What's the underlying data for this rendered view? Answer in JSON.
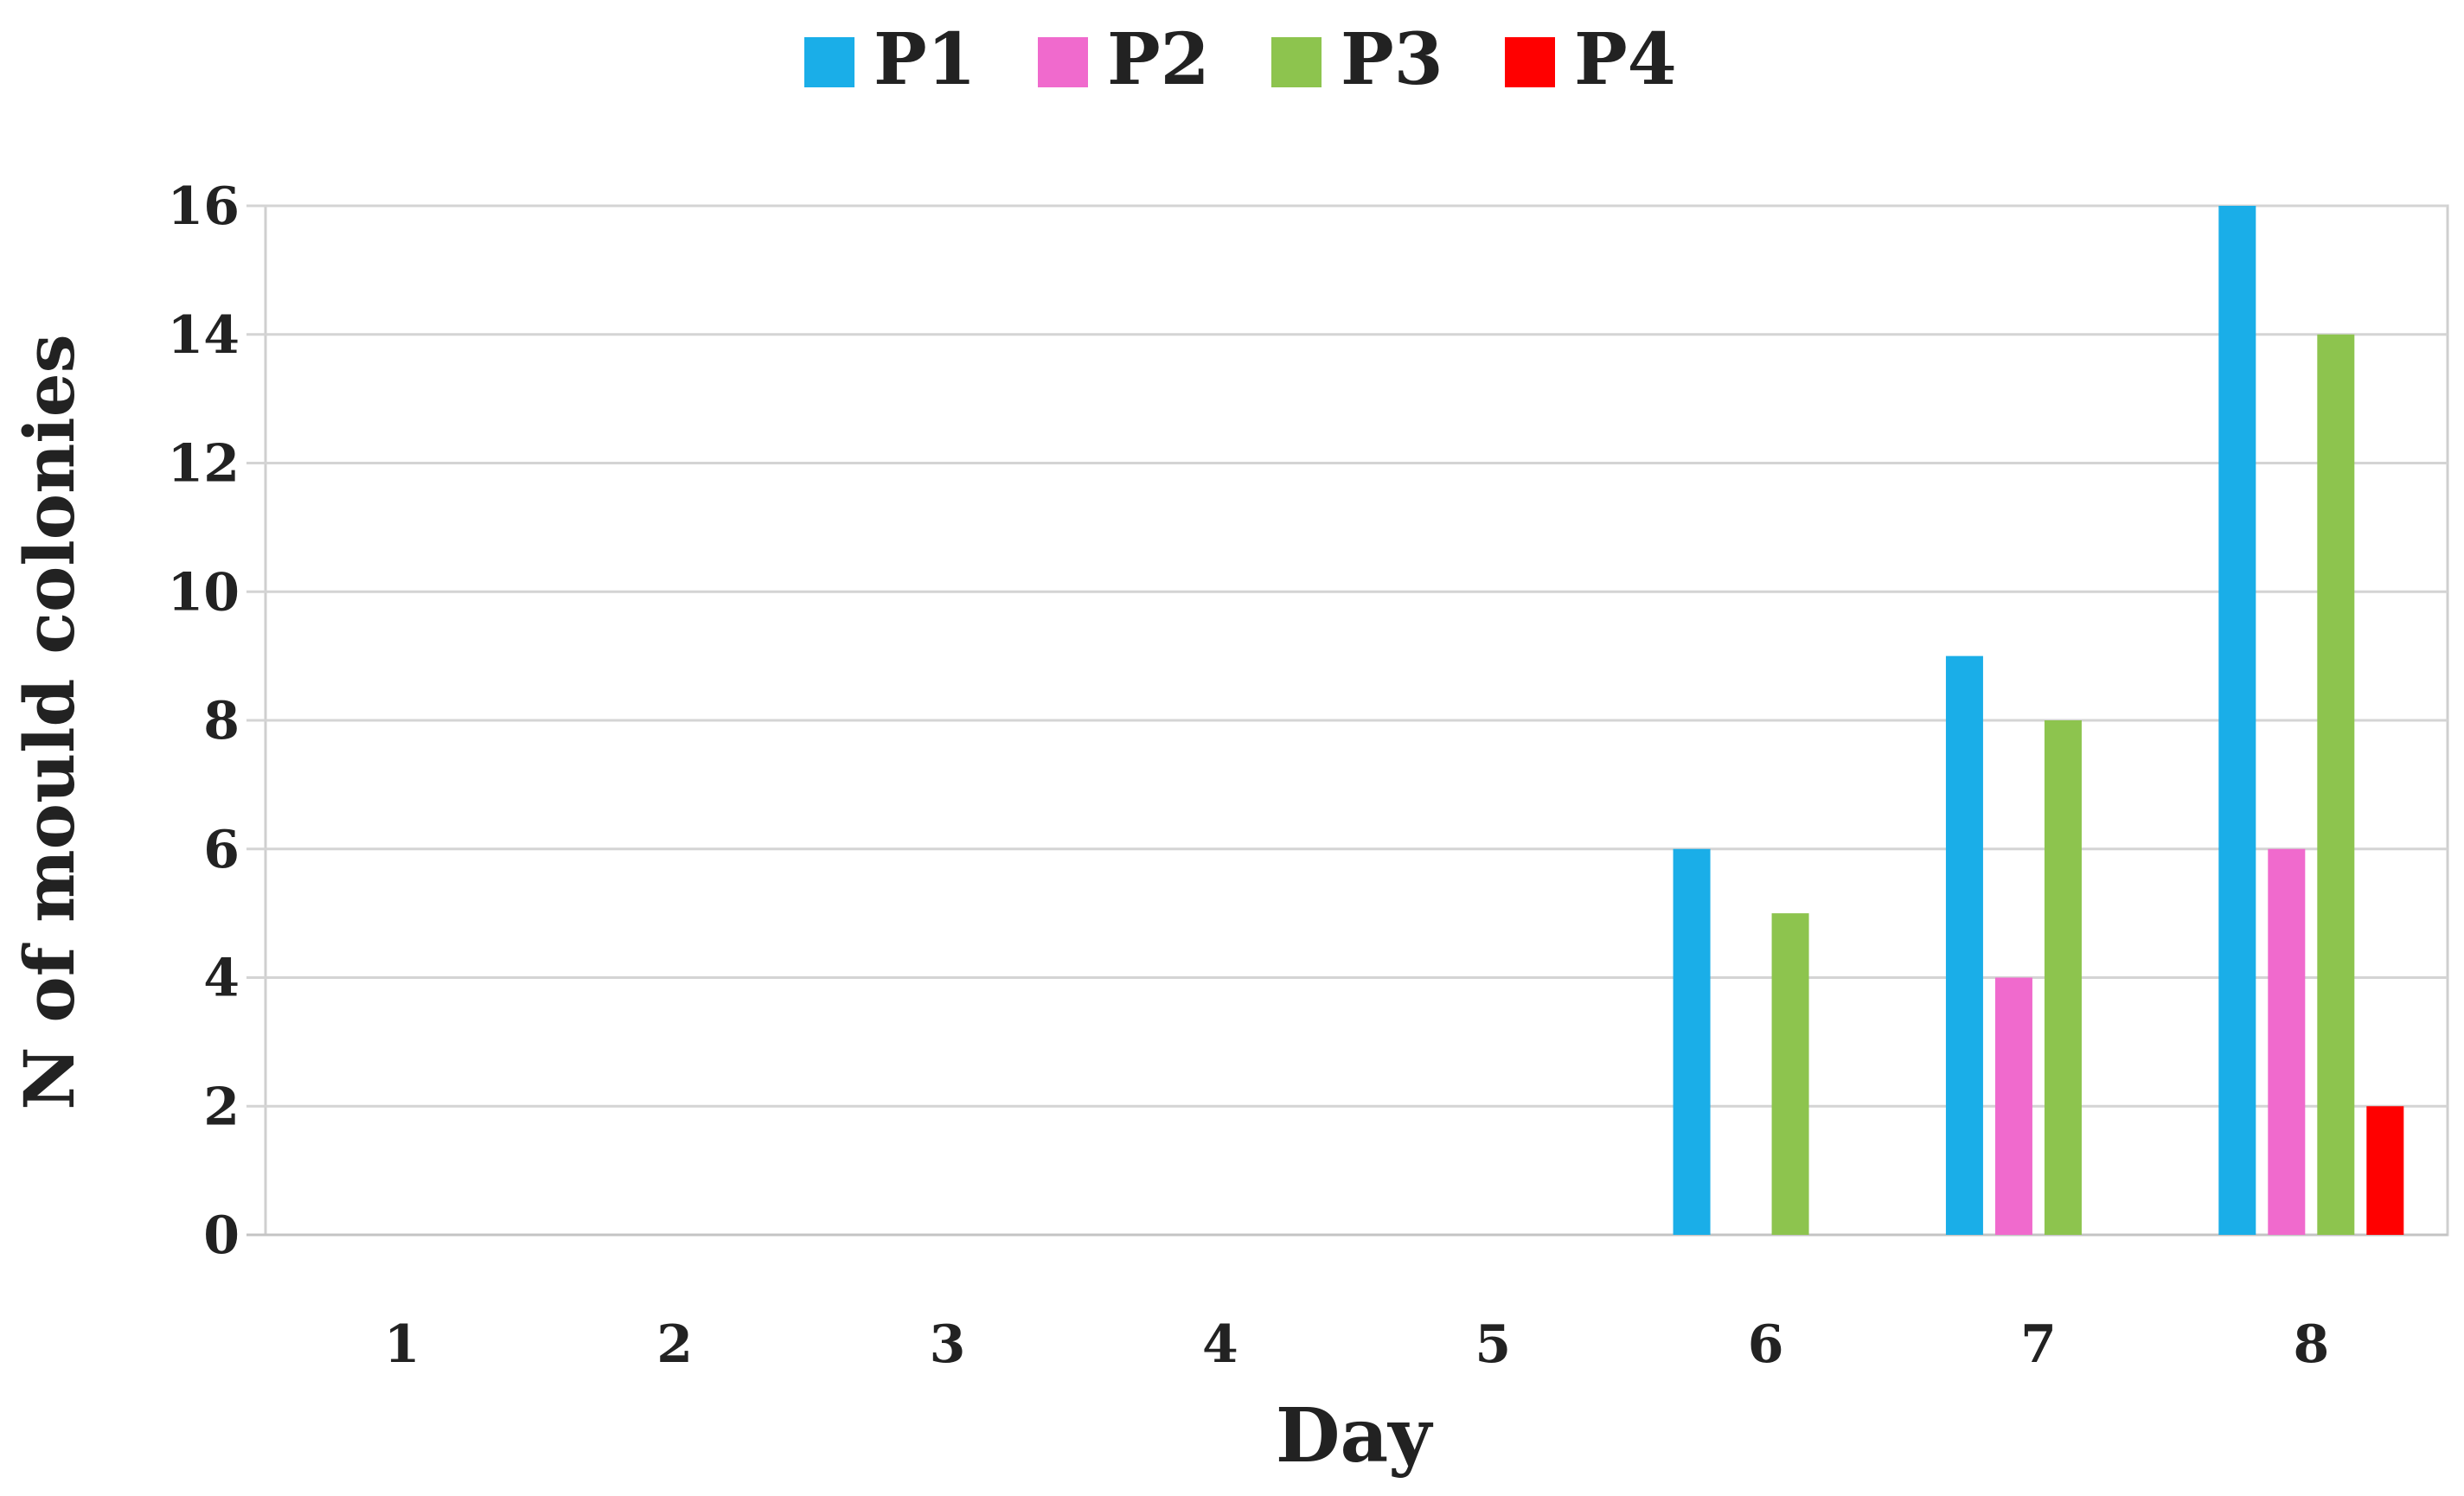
{
  "chart_data": {
    "type": "bar",
    "title": "",
    "xlabel": "Day",
    "ylabel": "N of mould colonies",
    "categories": [
      "1",
      "2",
      "3",
      "4",
      "5",
      "6",
      "7",
      "8"
    ],
    "ylim": [
      0,
      16
    ],
    "yticks": [
      0,
      2,
      4,
      6,
      8,
      10,
      12,
      14,
      16
    ],
    "grid": true,
    "legend_position": "top-center",
    "series": [
      {
        "name": "P1",
        "color": "#1aaee8",
        "values": [
          0,
          0,
          0,
          0,
          0,
          6,
          9,
          16
        ]
      },
      {
        "name": "P2",
        "color": "#f06acd",
        "values": [
          0,
          0,
          0,
          0,
          0,
          0,
          4,
          6
        ]
      },
      {
        "name": "P3",
        "color": "#8dc44e",
        "values": [
          0,
          0,
          0,
          0,
          0,
          5,
          8,
          14
        ]
      },
      {
        "name": "P4",
        "color": "#ff0000",
        "values": [
          0,
          0,
          0,
          0,
          0,
          0,
          0,
          2
        ]
      }
    ]
  }
}
